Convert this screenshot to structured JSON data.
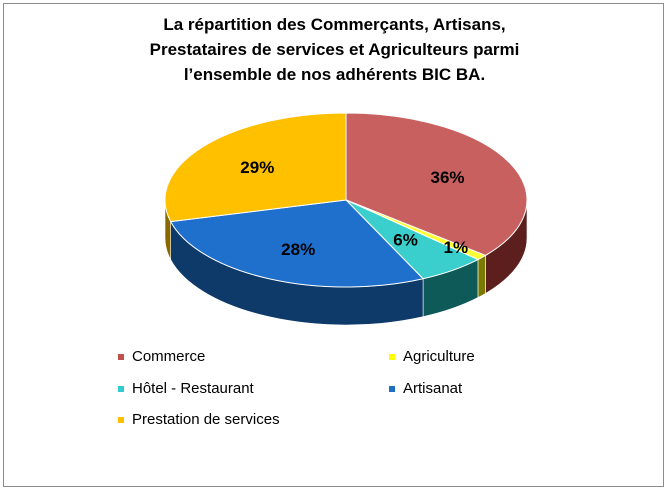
{
  "chart_data": {
    "type": "pie",
    "title_lines": [
      "La répartition des Commerçants, Artisans,",
      "Prestataires de services et Agriculteurs parmi",
      "l’ensemble de nos adhérents BIC BA."
    ],
    "slices": [
      {
        "name": "Commerce",
        "value": 36,
        "label": "36%",
        "color": "#C0504D",
        "color_top": "#C96060",
        "color_side": "#5C1F1E"
      },
      {
        "name": "Agriculture",
        "value": 1,
        "label": "1%",
        "color": "#FFFF00",
        "color_top": "#FFFF33",
        "color_side": "#7A7A00"
      },
      {
        "name": "Hôtel - Restaurant",
        "value": 6,
        "label": "6%",
        "color": "#33CCCC",
        "color_top": "#3ACFCC",
        "color_side": "#0E5A58"
      },
      {
        "name": "Artisanat",
        "value": 28,
        "label": "28%",
        "color": "#1F6FC0",
        "color_top": "#1F6FCC",
        "color_side": "#0E3A6A"
      },
      {
        "name": "Prestation de services",
        "value": 29,
        "label": "29%",
        "color": "#FFC000",
        "color_top": "#FFC000",
        "color_side": "#8A6800"
      }
    ],
    "legend_placement": "bottom",
    "legend_order": [
      "Commerce",
      "Agriculture",
      "Hôtel - Restaurant",
      "Artisanat",
      "Prestation de services"
    ]
  }
}
